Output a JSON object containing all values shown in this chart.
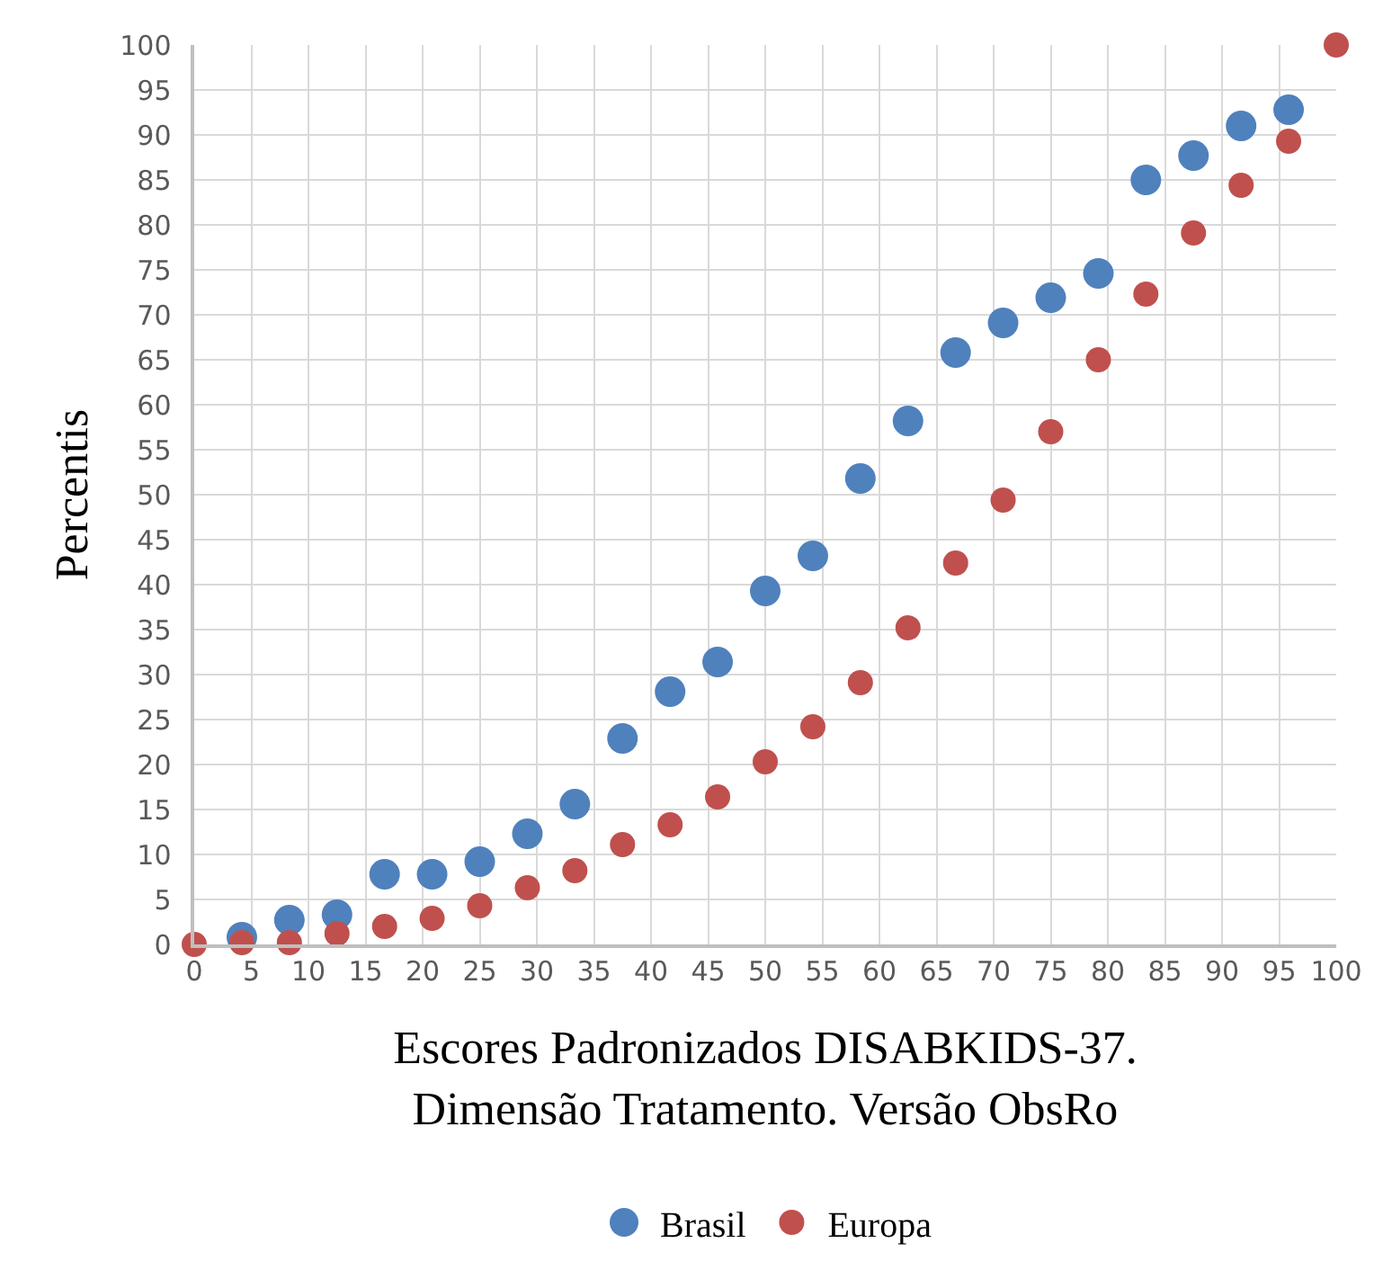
{
  "chart_data": {
    "type": "scatter",
    "xlabel": "Escores Padronizados DISABKIDS-37.\nDimensão Tratamento. Versão ObsRo",
    "ylabel": "Percentis",
    "x": [
      0,
      4.17,
      8.33,
      12.5,
      16.67,
      20.83,
      25,
      29.17,
      33.33,
      37.5,
      41.67,
      45.83,
      50,
      54.17,
      58.33,
      62.5,
      66.67,
      70.83,
      75,
      79.17,
      83.33,
      87.5,
      91.67,
      95.83,
      100
    ],
    "series": [
      {
        "name": "Brasil",
        "color": "#4f81bd",
        "values": [
          null,
          0.8,
          2.7,
          3.3,
          7.8,
          7.8,
          9.2,
          12.3,
          15.6,
          22.9,
          28.1,
          31.4,
          39.3,
          43.2,
          51.8,
          58.2,
          65.8,
          69.1,
          71.9,
          74.6,
          85.0,
          87.7,
          91.0,
          92.8,
          null
        ]
      },
      {
        "name": "Europa",
        "color": "#c0504d",
        "values": [
          0,
          0.2,
          0.2,
          1.2,
          2.0,
          2.9,
          4.3,
          6.3,
          8.2,
          11.1,
          13.3,
          16.4,
          20.3,
          24.2,
          29.1,
          35.2,
          42.4,
          49.4,
          57.0,
          65.0,
          72.3,
          79.1,
          84.4,
          89.3,
          100
        ]
      }
    ],
    "xlim": [
      0,
      100
    ],
    "xticks": [
      0,
      5,
      10,
      15,
      20,
      25,
      30,
      35,
      40,
      45,
      50,
      55,
      60,
      65,
      70,
      75,
      80,
      85,
      90,
      95,
      100
    ],
    "ylim": [
      0,
      100
    ],
    "yticks": [
      0,
      5,
      10,
      15,
      20,
      25,
      30,
      35,
      40,
      45,
      50,
      55,
      60,
      65,
      70,
      75,
      80,
      85,
      90,
      95,
      100
    ],
    "grid": true,
    "legend": "bottom",
    "marker": "circle"
  }
}
